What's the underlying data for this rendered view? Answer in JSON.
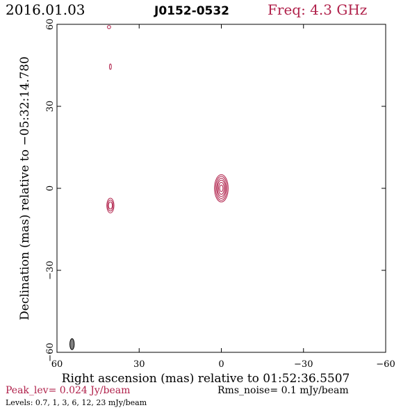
{
  "header": {
    "date": "2016.01.03",
    "source": "J0152-0532",
    "freq": "Freq: 4.3 GHz"
  },
  "colors": {
    "contour": "#b0204a",
    "axes": "#000000",
    "beam_fill": "#808080",
    "peak_text": "#b0204a"
  },
  "footer": {
    "peak": "Peak_lev=  0.024 Jy/beam",
    "rms": "Rms_noise=  0.1 mJy/beam",
    "levels": "Levels: 0.7,    1,    3,    6,   12,   23  mJy/beam"
  },
  "chart_data": {
    "type": "contour",
    "xlabel": "Right ascension (mas) relative to 01:52:36.5507",
    "ylabel": "Declination (mas) relative to −05:32:14.780",
    "xlim": [
      60,
      -60
    ],
    "ylim": [
      -60,
      60
    ],
    "x_ticks": [
      60,
      30,
      0,
      -30,
      -60
    ],
    "x_tick_labels": [
      "60",
      "30",
      "0",
      "−30",
      "−60"
    ],
    "y_ticks": [
      -60,
      -30,
      0,
      30,
      60
    ],
    "y_tick_labels": [
      "−60",
      "−30",
      "0",
      "30",
      "60"
    ],
    "levels_mjy": [
      0.7,
      1,
      3,
      6,
      12,
      23
    ],
    "components": [
      {
        "name": "core",
        "x": 0,
        "y": 0,
        "rings": [
          [
            0.6,
            1.2
          ],
          [
            1.0,
            2.2
          ],
          [
            1.4,
            3.0
          ],
          [
            1.7,
            3.7
          ],
          [
            2.1,
            4.4
          ],
          [
            2.5,
            5.0
          ]
        ]
      },
      {
        "name": "secondary",
        "x": 40.5,
        "y": -6.3,
        "rings": [
          [
            0.7,
            1.3
          ],
          [
            1.0,
            2.0
          ],
          [
            1.3,
            2.7
          ]
        ]
      },
      {
        "name": "faint-north",
        "x": 40.5,
        "y": 44.5,
        "rings": [
          [
            0.35,
            1.0
          ]
        ]
      },
      {
        "name": "faint-top",
        "x": 41,
        "y": 59,
        "rings": [
          [
            0.6,
            0.6
          ]
        ]
      }
    ],
    "beam": {
      "x": 54.5,
      "y": -57,
      "a": 0.8,
      "b": 2.0
    }
  }
}
